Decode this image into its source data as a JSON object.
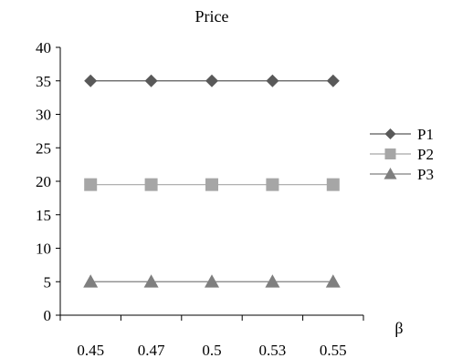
{
  "chart_data": {
    "type": "line",
    "title": "Price",
    "xlabel": "β",
    "ylabel": "",
    "categories": [
      "0.45",
      "0.47",
      "0.5",
      "0.53",
      "0.55"
    ],
    "ylim": [
      0,
      40
    ],
    "yticks": [
      0,
      5,
      10,
      15,
      20,
      25,
      30,
      35,
      40
    ],
    "grid": false,
    "legend_position": "right",
    "series": [
      {
        "name": "P1",
        "values": [
          35,
          35,
          35,
          35,
          35
        ],
        "color": "#595959",
        "marker": "diamond"
      },
      {
        "name": "P2",
        "values": [
          19.5,
          19.5,
          19.5,
          19.5,
          19.5
        ],
        "color": "#a6a6a6",
        "marker": "square"
      },
      {
        "name": "P3",
        "values": [
          5,
          5,
          5,
          5,
          5
        ],
        "color": "#7f7f7f",
        "marker": "triangle"
      }
    ]
  }
}
